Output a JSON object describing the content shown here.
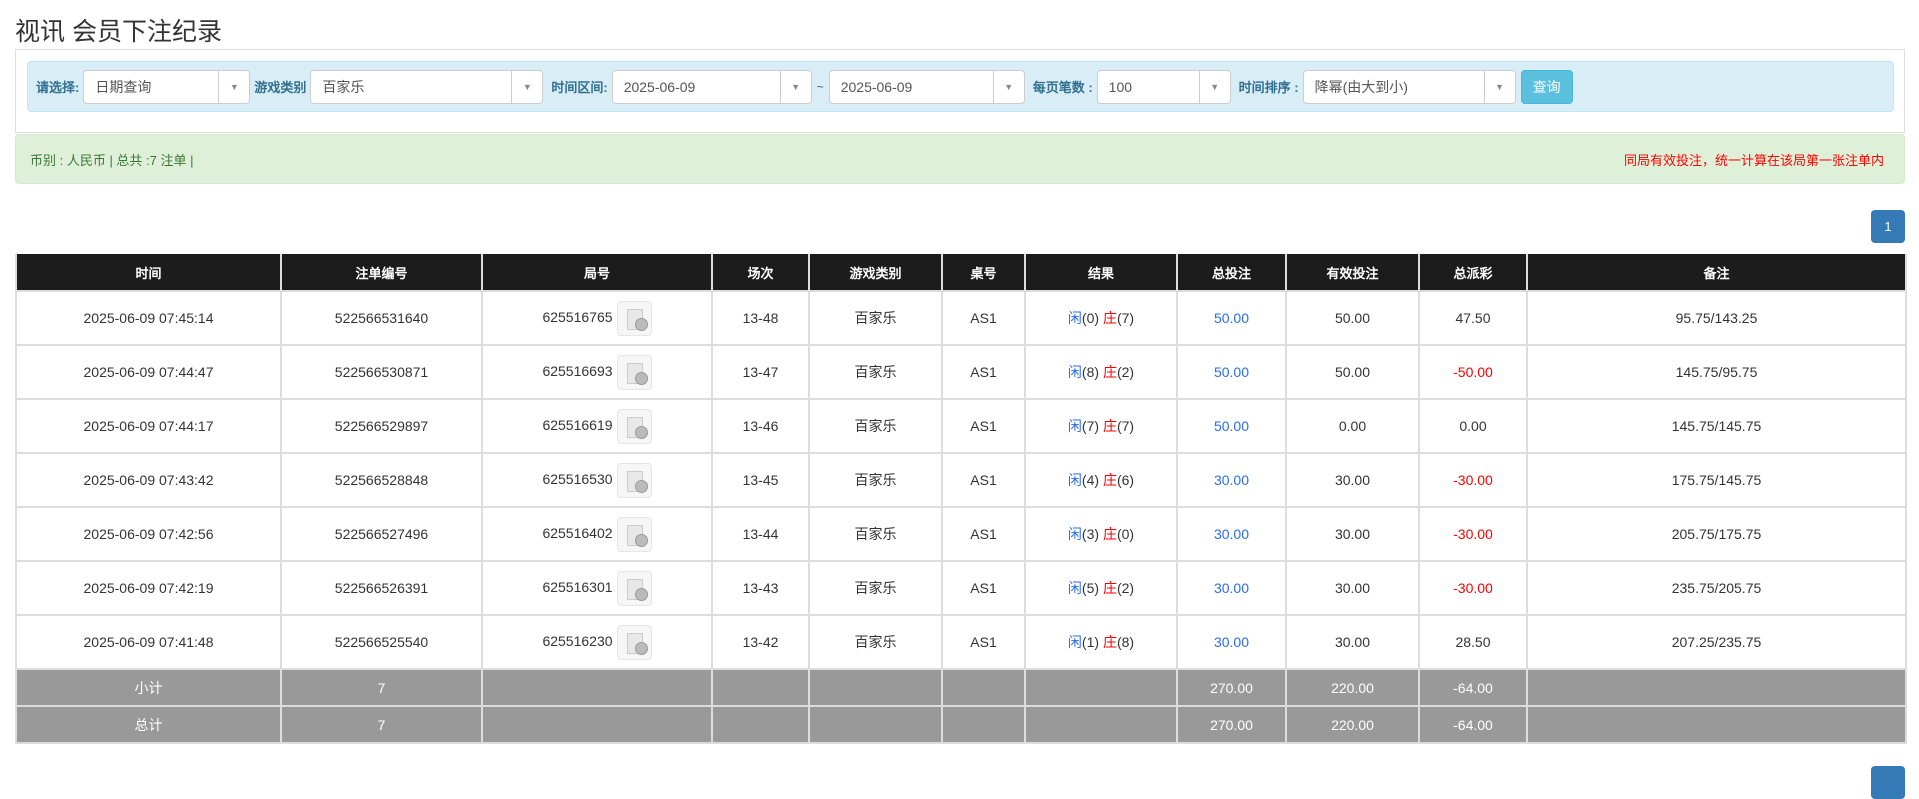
{
  "page_title": "视讯 会员下注纪录",
  "filter": {
    "select_label": "请选择:",
    "select_value": "日期查询",
    "game_type_label": "游戏类别",
    "game_type_value": "百家乐",
    "time_range_label": "时间区间:",
    "date_from": "2025-06-09",
    "range_sep": "~",
    "date_to": "2025-06-09",
    "per_page_label": "每页笔数 :",
    "per_page_value": "100",
    "sort_label": "时间排序 :",
    "sort_value": "降幂(由大到小)",
    "query_button": "查询"
  },
  "summary": {
    "info": "币别 : 人民币 | 总共 :7 注单 |",
    "notice": "同局有效投注，统一计算在该局第一张注单内"
  },
  "pagination": {
    "current_page": "1"
  },
  "colors": {
    "header_bg": "#1c1c1c",
    "sum_bg": "#999999",
    "blue": "#2a6cf0",
    "red": "#ff0000",
    "page_btn": "#337ab7"
  },
  "table": {
    "headers": [
      "时间",
      "注单编号",
      "局号",
      "场次",
      "游戏类别",
      "桌号",
      "结果",
      "总投注",
      "有效投注",
      "总派彩",
      "备注"
    ],
    "result_player_label": "闲",
    "result_banker_label": "庄",
    "rows": [
      {
        "time": "2025-06-09 07:45:14",
        "bet_no": "522566531640",
        "round_no": "625516765",
        "session": "13-48",
        "game": "百家乐",
        "table": "AS1",
        "player": "(0)",
        "banker": "(7)",
        "total_bet": "50.00",
        "valid_bet": "50.00",
        "payout": "47.50",
        "payout_negative": false,
        "remark": "95.75/143.25"
      },
      {
        "time": "2025-06-09 07:44:47",
        "bet_no": "522566530871",
        "round_no": "625516693",
        "session": "13-47",
        "game": "百家乐",
        "table": "AS1",
        "player": "(8)",
        "banker": "(2)",
        "total_bet": "50.00",
        "valid_bet": "50.00",
        "payout": "-50.00",
        "payout_negative": true,
        "remark": "145.75/95.75"
      },
      {
        "time": "2025-06-09 07:44:17",
        "bet_no": "522566529897",
        "round_no": "625516619",
        "session": "13-46",
        "game": "百家乐",
        "table": "AS1",
        "player": "(7)",
        "banker": "(7)",
        "total_bet": "50.00",
        "valid_bet": "0.00",
        "payout": "0.00",
        "payout_negative": false,
        "remark": "145.75/145.75"
      },
      {
        "time": "2025-06-09 07:43:42",
        "bet_no": "522566528848",
        "round_no": "625516530",
        "session": "13-45",
        "game": "百家乐",
        "table": "AS1",
        "player": "(4)",
        "banker": "(6)",
        "total_bet": "30.00",
        "valid_bet": "30.00",
        "payout": "-30.00",
        "payout_negative": true,
        "remark": "175.75/145.75"
      },
      {
        "time": "2025-06-09 07:42:56",
        "bet_no": "522566527496",
        "round_no": "625516402",
        "session": "13-44",
        "game": "百家乐",
        "table": "AS1",
        "player": "(3)",
        "banker": "(0)",
        "total_bet": "30.00",
        "valid_bet": "30.00",
        "payout": "-30.00",
        "payout_negative": true,
        "remark": "205.75/175.75"
      },
      {
        "time": "2025-06-09 07:42:19",
        "bet_no": "522566526391",
        "round_no": "625516301",
        "session": "13-43",
        "game": "百家乐",
        "table": "AS1",
        "player": "(5)",
        "banker": "(2)",
        "total_bet": "30.00",
        "valid_bet": "30.00",
        "payout": "-30.00",
        "payout_negative": true,
        "remark": "235.75/205.75"
      },
      {
        "time": "2025-06-09 07:41:48",
        "bet_no": "522566525540",
        "round_no": "625516230",
        "session": "13-42",
        "game": "百家乐",
        "table": "AS1",
        "player": "(1)",
        "banker": "(8)",
        "total_bet": "30.00",
        "valid_bet": "30.00",
        "payout": "28.50",
        "payout_negative": false,
        "remark": "207.25/235.75"
      }
    ],
    "totals": [
      {
        "label": "小计",
        "count": "7",
        "total_bet": "270.00",
        "valid_bet": "220.00",
        "payout": "-64.00"
      },
      {
        "label": "总计",
        "count": "7",
        "total_bet": "270.00",
        "valid_bet": "220.00",
        "payout": "-64.00"
      }
    ]
  }
}
